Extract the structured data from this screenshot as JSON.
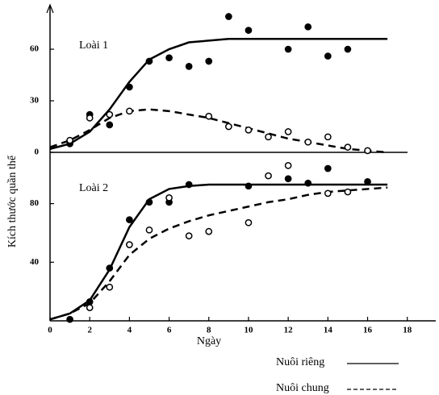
{
  "chart_data": [
    {
      "type": "line",
      "label": "Loài 1",
      "ylabel": "Kích thước quần thể",
      "xlim": [
        0,
        18.5
      ],
      "ylim": [
        0,
        83
      ],
      "yticks": [
        0,
        30,
        60
      ],
      "x": [
        0,
        1,
        2,
        3,
        4,
        5,
        6,
        7,
        8,
        9,
        10,
        11,
        12,
        13,
        14,
        15,
        16,
        17
      ],
      "series": [
        {
          "name": "Nuôi riêng",
          "color": "#000",
          "dash": "solid",
          "values": [
            2,
            5,
            12,
            25,
            41,
            54,
            60,
            64,
            65,
            66,
            66,
            66,
            66,
            66,
            66,
            66,
            66,
            66
          ]
        },
        {
          "name": "Nuôi chung",
          "color": "#000",
          "dash": "dashed",
          "values": [
            3,
            7,
            13,
            20,
            24,
            25,
            24,
            22,
            20,
            17,
            14,
            11,
            8,
            6,
            4,
            2,
            1,
            0
          ]
        }
      ],
      "points": [
        {
          "fill": "#000",
          "x": [
            1,
            2,
            3,
            4,
            5,
            6,
            7,
            8,
            9,
            10,
            12,
            13,
            14,
            15
          ],
          "values": [
            5,
            22,
            16,
            38,
            53,
            55,
            50,
            53,
            79,
            71,
            60,
            73,
            56,
            60
          ]
        },
        {
          "fill": "#fff",
          "x": [
            1,
            2,
            3,
            4,
            8,
            9,
            10,
            11,
            12,
            13,
            14,
            15,
            16
          ],
          "values": [
            7,
            20,
            22,
            24,
            21,
            15,
            13,
            9,
            12,
            6,
            9,
            3,
            1
          ]
        }
      ]
    },
    {
      "type": "line",
      "label": "Loài 2",
      "xlabel": "Ngày",
      "xlim": [
        0,
        18.5
      ],
      "ylim": [
        0,
        115
      ],
      "yticks": [
        40,
        80
      ],
      "xticks": [
        0,
        2,
        4,
        6,
        8,
        10,
        12,
        14,
        16,
        18
      ],
      "x": [
        0,
        1,
        2,
        3,
        4,
        5,
        6,
        7,
        8,
        9,
        10,
        11,
        12,
        13,
        14,
        15,
        16,
        17
      ],
      "series": [
        {
          "color": "#000",
          "dash": "solid",
          "values": [
            1,
            5,
            14,
            35,
            64,
            83,
            90,
            92,
            93,
            93,
            93,
            93,
            93,
            93,
            93,
            93,
            93,
            93
          ]
        },
        {
          "color": "#000",
          "dash": "dashed",
          "values": [
            1,
            5,
            12,
            27,
            45,
            56,
            63,
            68,
            72,
            75,
            78,
            81,
            83,
            86,
            88,
            89,
            90,
            91
          ]
        }
      ],
      "points": [
        {
          "fill": "#000",
          "x": [
            1,
            2,
            3,
            4,
            5,
            6,
            7,
            10,
            12,
            13,
            14,
            16
          ],
          "values": [
            1,
            13,
            36,
            69,
            81,
            81,
            93,
            92,
            97,
            94,
            104,
            95
          ]
        },
        {
          "fill": "#fff",
          "x": [
            2,
            3,
            4,
            5,
            6,
            7,
            8,
            10,
            11,
            12,
            14,
            15
          ],
          "values": [
            9,
            23,
            52,
            62,
            84,
            58,
            61,
            67,
            99,
            106,
            87,
            88
          ]
        }
      ]
    }
  ]
}
